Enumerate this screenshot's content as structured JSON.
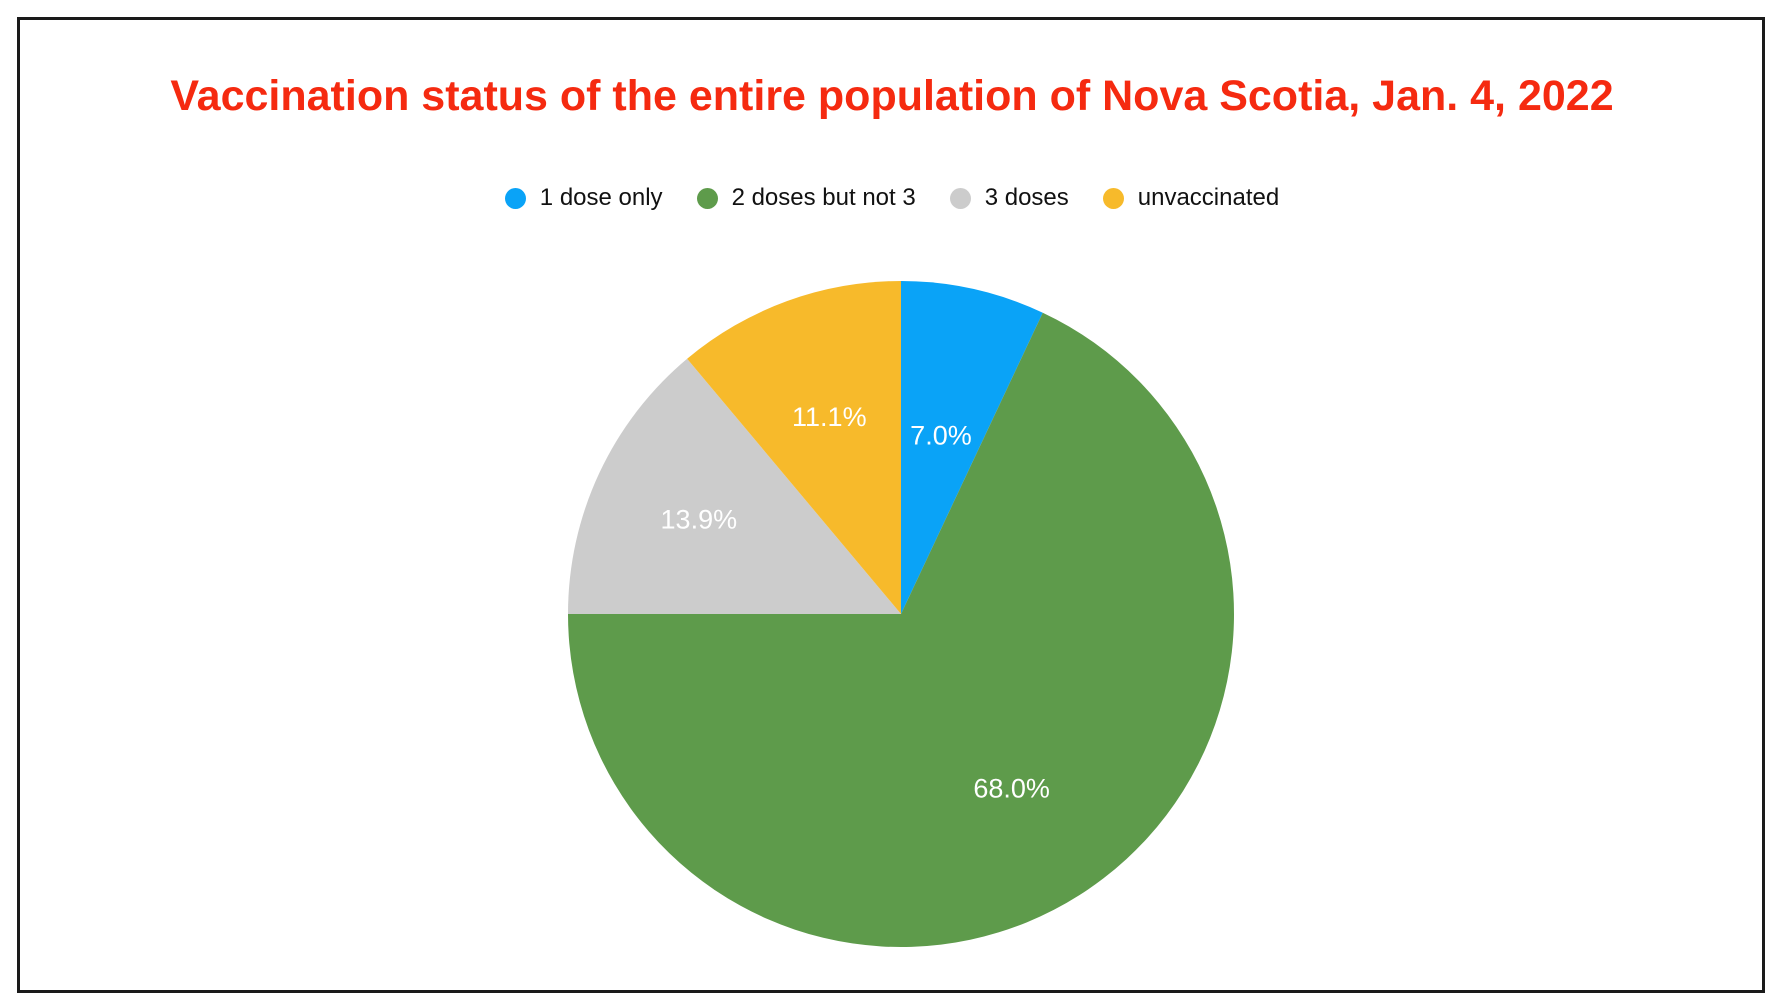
{
  "chart_data": {
    "type": "pie",
    "title": "Vaccination status of the entire population of Nova Scotia, Jan. 4, 2022",
    "legend_position": "top",
    "slices": [
      {
        "label": "1 dose only",
        "value": 7.0,
        "display": "7.0%",
        "color": "#0aa3f7"
      },
      {
        "label": "2 doses but not 3",
        "value": 68.0,
        "display": "68.0%",
        "color": "#5e9b4b"
      },
      {
        "label": "3 doses",
        "value": 13.9,
        "display": "13.9%",
        "color": "#cccccc"
      },
      {
        "label": "unvaccinated",
        "value": 11.1,
        "display": "11.1%",
        "color": "#f7ba2b"
      }
    ]
  }
}
